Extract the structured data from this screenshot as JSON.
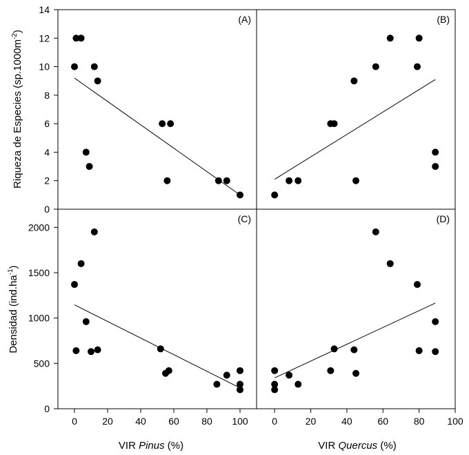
{
  "figure": {
    "ylabel_top": "Riqueza de Especies (sp.1000m",
    "ylabel_top_sup": "-2",
    "ylabel_top_end": ")",
    "ylabel_bottom": "Densidad (ind.ha",
    "ylabel_bottom_sup": "-1",
    "ylabel_bottom_end": ")",
    "xlabel_left_prefix": "VIR ",
    "xlabel_left_italic": "Pinus",
    "xlabel_left_suffix": " (%)",
    "xlabel_right_prefix": "VIR ",
    "xlabel_right_italic": "Quercus",
    "xlabel_right_suffix": " (%)"
  },
  "chart_data": [
    {
      "type": "scatter",
      "panel": "(A)",
      "xlim": [
        -10,
        110
      ],
      "ylim": [
        0,
        14
      ],
      "yticks": [
        0,
        2,
        4,
        6,
        8,
        10,
        12,
        14
      ],
      "points": [
        {
          "x": 0,
          "y": 10
        },
        {
          "x": 1,
          "y": 12
        },
        {
          "x": 4,
          "y": 12
        },
        {
          "x": 12,
          "y": 10
        },
        {
          "x": 14,
          "y": 9
        },
        {
          "x": 7,
          "y": 4
        },
        {
          "x": 9,
          "y": 3
        },
        {
          "x": 53,
          "y": 6
        },
        {
          "x": 58,
          "y": 6
        },
        {
          "x": 56,
          "y": 2
        },
        {
          "x": 87,
          "y": 2
        },
        {
          "x": 92,
          "y": 2
        },
        {
          "x": 100,
          "y": 1
        }
      ],
      "fit": {
        "x": [
          0,
          100
        ],
        "y": [
          9.2,
          1.0
        ]
      }
    },
    {
      "type": "scatter",
      "panel": "(B)",
      "xlim": [
        -10,
        100
      ],
      "ylim": [
        0,
        14
      ],
      "points": [
        {
          "x": 0,
          "y": 1
        },
        {
          "x": 8,
          "y": 2
        },
        {
          "x": 13,
          "y": 2
        },
        {
          "x": 31,
          "y": 6
        },
        {
          "x": 33,
          "y": 6
        },
        {
          "x": 44,
          "y": 9
        },
        {
          "x": 45,
          "y": 2
        },
        {
          "x": 56,
          "y": 10
        },
        {
          "x": 64,
          "y": 12
        },
        {
          "x": 79,
          "y": 10
        },
        {
          "x": 80,
          "y": 12
        },
        {
          "x": 89,
          "y": 4
        },
        {
          "x": 89,
          "y": 3
        }
      ],
      "fit": {
        "x": [
          0,
          89
        ],
        "y": [
          2.1,
          9.1
        ]
      }
    },
    {
      "type": "scatter",
      "panel": "(C)",
      "xlim": [
        -10,
        110
      ],
      "ylim": [
        0,
        2200
      ],
      "xticks": [
        0,
        20,
        40,
        60,
        80,
        100
      ],
      "yticks": [
        0,
        500,
        1000,
        1500,
        2000
      ],
      "points": [
        {
          "x": 0,
          "y": 1370
        },
        {
          "x": 4,
          "y": 1600
        },
        {
          "x": 12,
          "y": 1950
        },
        {
          "x": 7,
          "y": 960
        },
        {
          "x": 1,
          "y": 640
        },
        {
          "x": 10,
          "y": 630
        },
        {
          "x": 14,
          "y": 650
        },
        {
          "x": 52,
          "y": 660
        },
        {
          "x": 55,
          "y": 390
        },
        {
          "x": 57,
          "y": 420
        },
        {
          "x": 86,
          "y": 270
        },
        {
          "x": 92,
          "y": 370
        },
        {
          "x": 100,
          "y": 420
        },
        {
          "x": 100,
          "y": 270
        },
        {
          "x": 100,
          "y": 210
        }
      ],
      "fit": {
        "x": [
          0,
          100
        ],
        "y": [
          1145,
          230
        ]
      }
    },
    {
      "type": "scatter",
      "panel": "(D)",
      "xlim": [
        -10,
        100
      ],
      "ylim": [
        0,
        2200
      ],
      "xticks": [
        0,
        20,
        40,
        60,
        80,
        100
      ],
      "points": [
        {
          "x": 0,
          "y": 420
        },
        {
          "x": 0,
          "y": 270
        },
        {
          "x": 0,
          "y": 210
        },
        {
          "x": 8,
          "y": 370
        },
        {
          "x": 13,
          "y": 270
        },
        {
          "x": 31,
          "y": 420
        },
        {
          "x": 33,
          "y": 660
        },
        {
          "x": 44,
          "y": 650
        },
        {
          "x": 45,
          "y": 390
        },
        {
          "x": 56,
          "y": 1950
        },
        {
          "x": 64,
          "y": 1600
        },
        {
          "x": 79,
          "y": 1370
        },
        {
          "x": 80,
          "y": 640
        },
        {
          "x": 89,
          "y": 960
        },
        {
          "x": 89,
          "y": 630
        }
      ],
      "fit": {
        "x": [
          0,
          89
        ],
        "y": [
          340,
          1165
        ]
      }
    }
  ]
}
